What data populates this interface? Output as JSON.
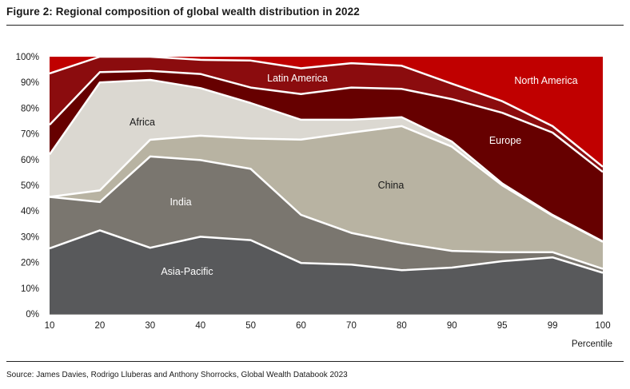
{
  "title": "Figure 2: Regional composition of global wealth distribution in 2022",
  "source": "Source: James Davies, Rodrigo Lluberas and Anthony Shorrocks, Global Wealth Databook 2023",
  "chart_data": {
    "type": "area",
    "stacked": true,
    "x_categorical": true,
    "title": "Figure 2: Regional composition of global wealth distribution in 2022",
    "xlabel": "Percentile",
    "ylabel": "",
    "x": [
      "10",
      "20",
      "30",
      "40",
      "50",
      "60",
      "70",
      "80",
      "90",
      "95",
      "99",
      "100"
    ],
    "ylim": [
      0,
      100
    ],
    "yticks": [
      "0%",
      "10%",
      "20%",
      "30%",
      "40%",
      "50%",
      "60%",
      "70%",
      "80%",
      "90%",
      "100%"
    ],
    "grid": false,
    "series": [
      {
        "name": "Asia-Pacific",
        "color": "#58595b",
        "values": [
          25.5,
          32.5,
          25.7,
          30,
          28.7,
          19.8,
          19.2,
          17,
          18,
          20.5,
          22,
          16
        ]
      },
      {
        "name": "India",
        "color": "#7a766f",
        "values": [
          20,
          11,
          35.5,
          29.8,
          27.7,
          18.7,
          12.3,
          10.5,
          6.5,
          3.5,
          2,
          1.5
        ]
      },
      {
        "name": "China",
        "color": "#b8b3a2",
        "values": [
          0,
          4.5,
          6.5,
          9.5,
          11.8,
          29.3,
          39,
          45.5,
          40.5,
          26,
          14.2,
          10.5
        ]
      },
      {
        "name": "Africa",
        "color": "#dbd8d1",
        "values": [
          16.5,
          42,
          23.3,
          18.5,
          13.8,
          7.7,
          5,
          3.5,
          2,
          0.7,
          0.3,
          0.2
        ]
      },
      {
        "name": "Europe",
        "color": "#660000",
        "values": [
          11.5,
          4,
          3.5,
          5.5,
          6,
          10,
          12.5,
          11,
          16.5,
          27.5,
          32,
          27
        ]
      },
      {
        "name": "Latin America",
        "color": "#8b0c0e",
        "values": [
          20,
          6,
          5.5,
          5.5,
          10.5,
          10,
          9.5,
          9,
          6,
          4.5,
          2.5,
          2
        ]
      },
      {
        "name": "North America",
        "color": "#c00000",
        "values": [
          6.5,
          0,
          0,
          1.2,
          1.5,
          4.5,
          2.5,
          3.5,
          10.5,
          17.3,
          27,
          42.8
        ]
      }
    ],
    "labels": {
      "asia_pacific": "Asia-Pacific",
      "india": "India",
      "china": "China",
      "africa": "Africa",
      "europe": "Europe",
      "latin_america": "Latin America",
      "north_america": "North America",
      "percentile": "Percentile"
    }
  }
}
